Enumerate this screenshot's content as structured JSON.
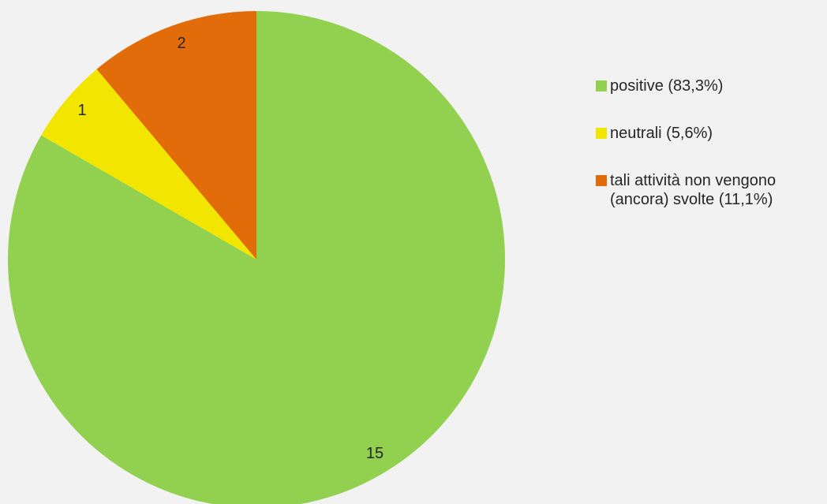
{
  "chart_data": {
    "type": "pie",
    "title": "",
    "start_angle": "12 o'clock",
    "direction": "clockwise",
    "slices": [
      {
        "label": "positive (83,3%)",
        "value": 15,
        "color": "#92d050"
      },
      {
        "label": "neutrali (5,6%)",
        "value": 1,
        "color": "#f2e600"
      },
      {
        "label": "tali attività non vengono\n(ancora) svolte (11,1%)",
        "value": 2,
        "color": "#e36c0a"
      }
    ],
    "legend_position": "right",
    "data_labels": [
      "15",
      "1",
      "2"
    ]
  }
}
